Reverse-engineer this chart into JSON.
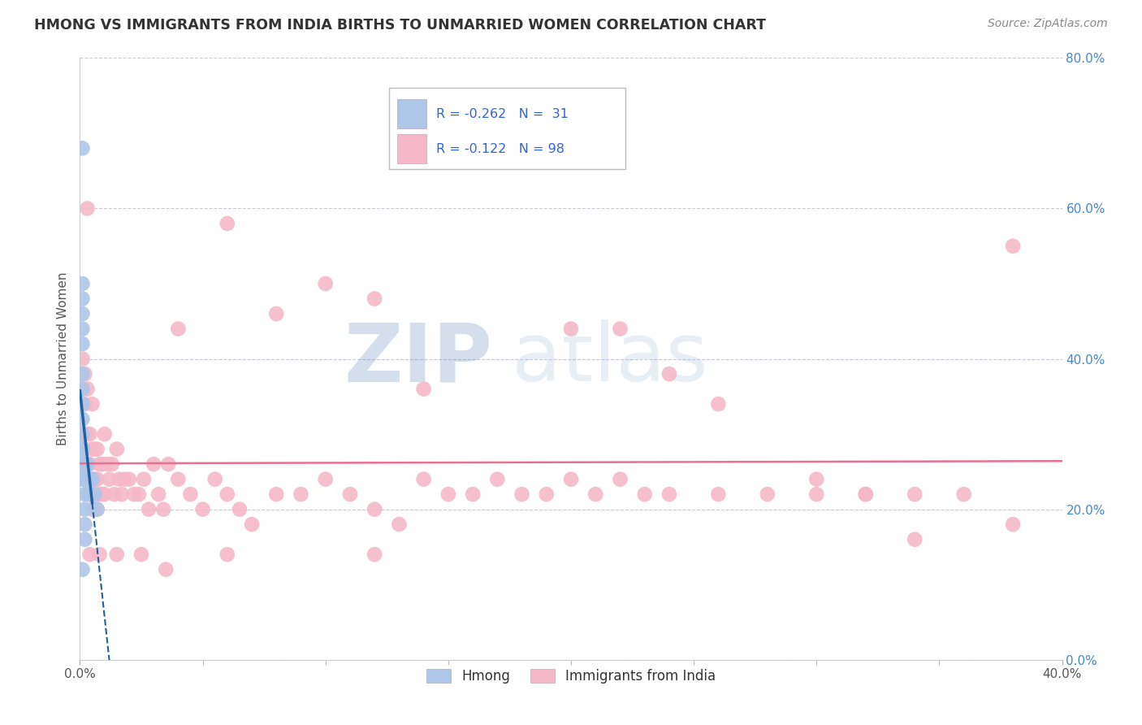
{
  "title": "HMONG VS IMMIGRANTS FROM INDIA BIRTHS TO UNMARRIED WOMEN CORRELATION CHART",
  "source": "Source: ZipAtlas.com",
  "xlabel_bottom": "Hmong",
  "xlabel2_bottom": "Immigrants from India",
  "ylabel": "Births to Unmarried Women",
  "watermark": "ZIPatlas",
  "xlim": [
    0.0,
    0.4
  ],
  "ylim": [
    0.0,
    0.8
  ],
  "ytick_positions": [
    0.0,
    0.2,
    0.4,
    0.6,
    0.8
  ],
  "ytick_labels": [
    "0.0%",
    "20.0%",
    "40.0%",
    "60.0%",
    "80.0%"
  ],
  "xtick_positions": [
    0.0,
    0.4
  ],
  "xtick_labels": [
    "0.0%",
    "40.0%"
  ],
  "legend_r1": "R = -0.262",
  "legend_n1": "N =  31",
  "legend_r2": "R = -0.122",
  "legend_n2": "N = 98",
  "hmong_color": "#aec6e8",
  "india_color": "#f4b8c8",
  "trend_blue": "#2060a0",
  "trend_pink": "#e87090",
  "background_color": "#ffffff",
  "grid_color": "#c8c8d8",
  "hmong_x": [
    0.001,
    0.001,
    0.001,
    0.001,
    0.001,
    0.001,
    0.001,
    0.001,
    0.001,
    0.001,
    0.001,
    0.001,
    0.001,
    0.001,
    0.001,
    0.001,
    0.001,
    0.002,
    0.002,
    0.002,
    0.002,
    0.002,
    0.002,
    0.003,
    0.003,
    0.004,
    0.004,
    0.005,
    0.006,
    0.007,
    0.001
  ],
  "hmong_y": [
    0.68,
    0.5,
    0.48,
    0.46,
    0.44,
    0.42,
    0.38,
    0.36,
    0.34,
    0.32,
    0.3,
    0.28,
    0.26,
    0.24,
    0.24,
    0.26,
    0.28,
    0.26,
    0.24,
    0.22,
    0.2,
    0.18,
    0.16,
    0.26,
    0.24,
    0.24,
    0.22,
    0.24,
    0.22,
    0.2,
    0.12
  ],
  "india_x": [
    0.001,
    0.001,
    0.001,
    0.002,
    0.002,
    0.002,
    0.002,
    0.003,
    0.003,
    0.003,
    0.003,
    0.004,
    0.004,
    0.004,
    0.005,
    0.005,
    0.005,
    0.005,
    0.006,
    0.006,
    0.006,
    0.007,
    0.007,
    0.007,
    0.008,
    0.008,
    0.009,
    0.009,
    0.01,
    0.01,
    0.011,
    0.012,
    0.013,
    0.014,
    0.015,
    0.016,
    0.017,
    0.018,
    0.02,
    0.022,
    0.024,
    0.026,
    0.028,
    0.03,
    0.032,
    0.034,
    0.036,
    0.04,
    0.045,
    0.05,
    0.055,
    0.06,
    0.065,
    0.07,
    0.08,
    0.09,
    0.1,
    0.11,
    0.12,
    0.13,
    0.14,
    0.15,
    0.16,
    0.17,
    0.18,
    0.19,
    0.2,
    0.21,
    0.22,
    0.23,
    0.24,
    0.26,
    0.28,
    0.3,
    0.32,
    0.34,
    0.36,
    0.38,
    0.04,
    0.06,
    0.08,
    0.1,
    0.12,
    0.14,
    0.2,
    0.22,
    0.24,
    0.26,
    0.3,
    0.32,
    0.34,
    0.38,
    0.12,
    0.06,
    0.035,
    0.025,
    0.015,
    0.008,
    0.004,
    0.003
  ],
  "india_y": [
    0.4,
    0.36,
    0.3,
    0.38,
    0.34,
    0.28,
    0.26,
    0.36,
    0.3,
    0.26,
    0.22,
    0.3,
    0.26,
    0.22,
    0.34,
    0.28,
    0.24,
    0.2,
    0.28,
    0.24,
    0.2,
    0.28,
    0.24,
    0.2,
    0.26,
    0.22,
    0.26,
    0.22,
    0.3,
    0.22,
    0.26,
    0.24,
    0.26,
    0.22,
    0.28,
    0.24,
    0.22,
    0.24,
    0.24,
    0.22,
    0.22,
    0.24,
    0.2,
    0.26,
    0.22,
    0.2,
    0.26,
    0.24,
    0.22,
    0.2,
    0.24,
    0.22,
    0.2,
    0.18,
    0.22,
    0.22,
    0.24,
    0.22,
    0.2,
    0.18,
    0.24,
    0.22,
    0.22,
    0.24,
    0.22,
    0.22,
    0.24,
    0.22,
    0.24,
    0.22,
    0.22,
    0.22,
    0.22,
    0.24,
    0.22,
    0.22,
    0.22,
    0.18,
    0.44,
    0.58,
    0.46,
    0.5,
    0.48,
    0.36,
    0.44,
    0.44,
    0.38,
    0.34,
    0.22,
    0.22,
    0.16,
    0.55,
    0.14,
    0.14,
    0.12,
    0.14,
    0.14,
    0.14,
    0.14,
    0.6
  ]
}
